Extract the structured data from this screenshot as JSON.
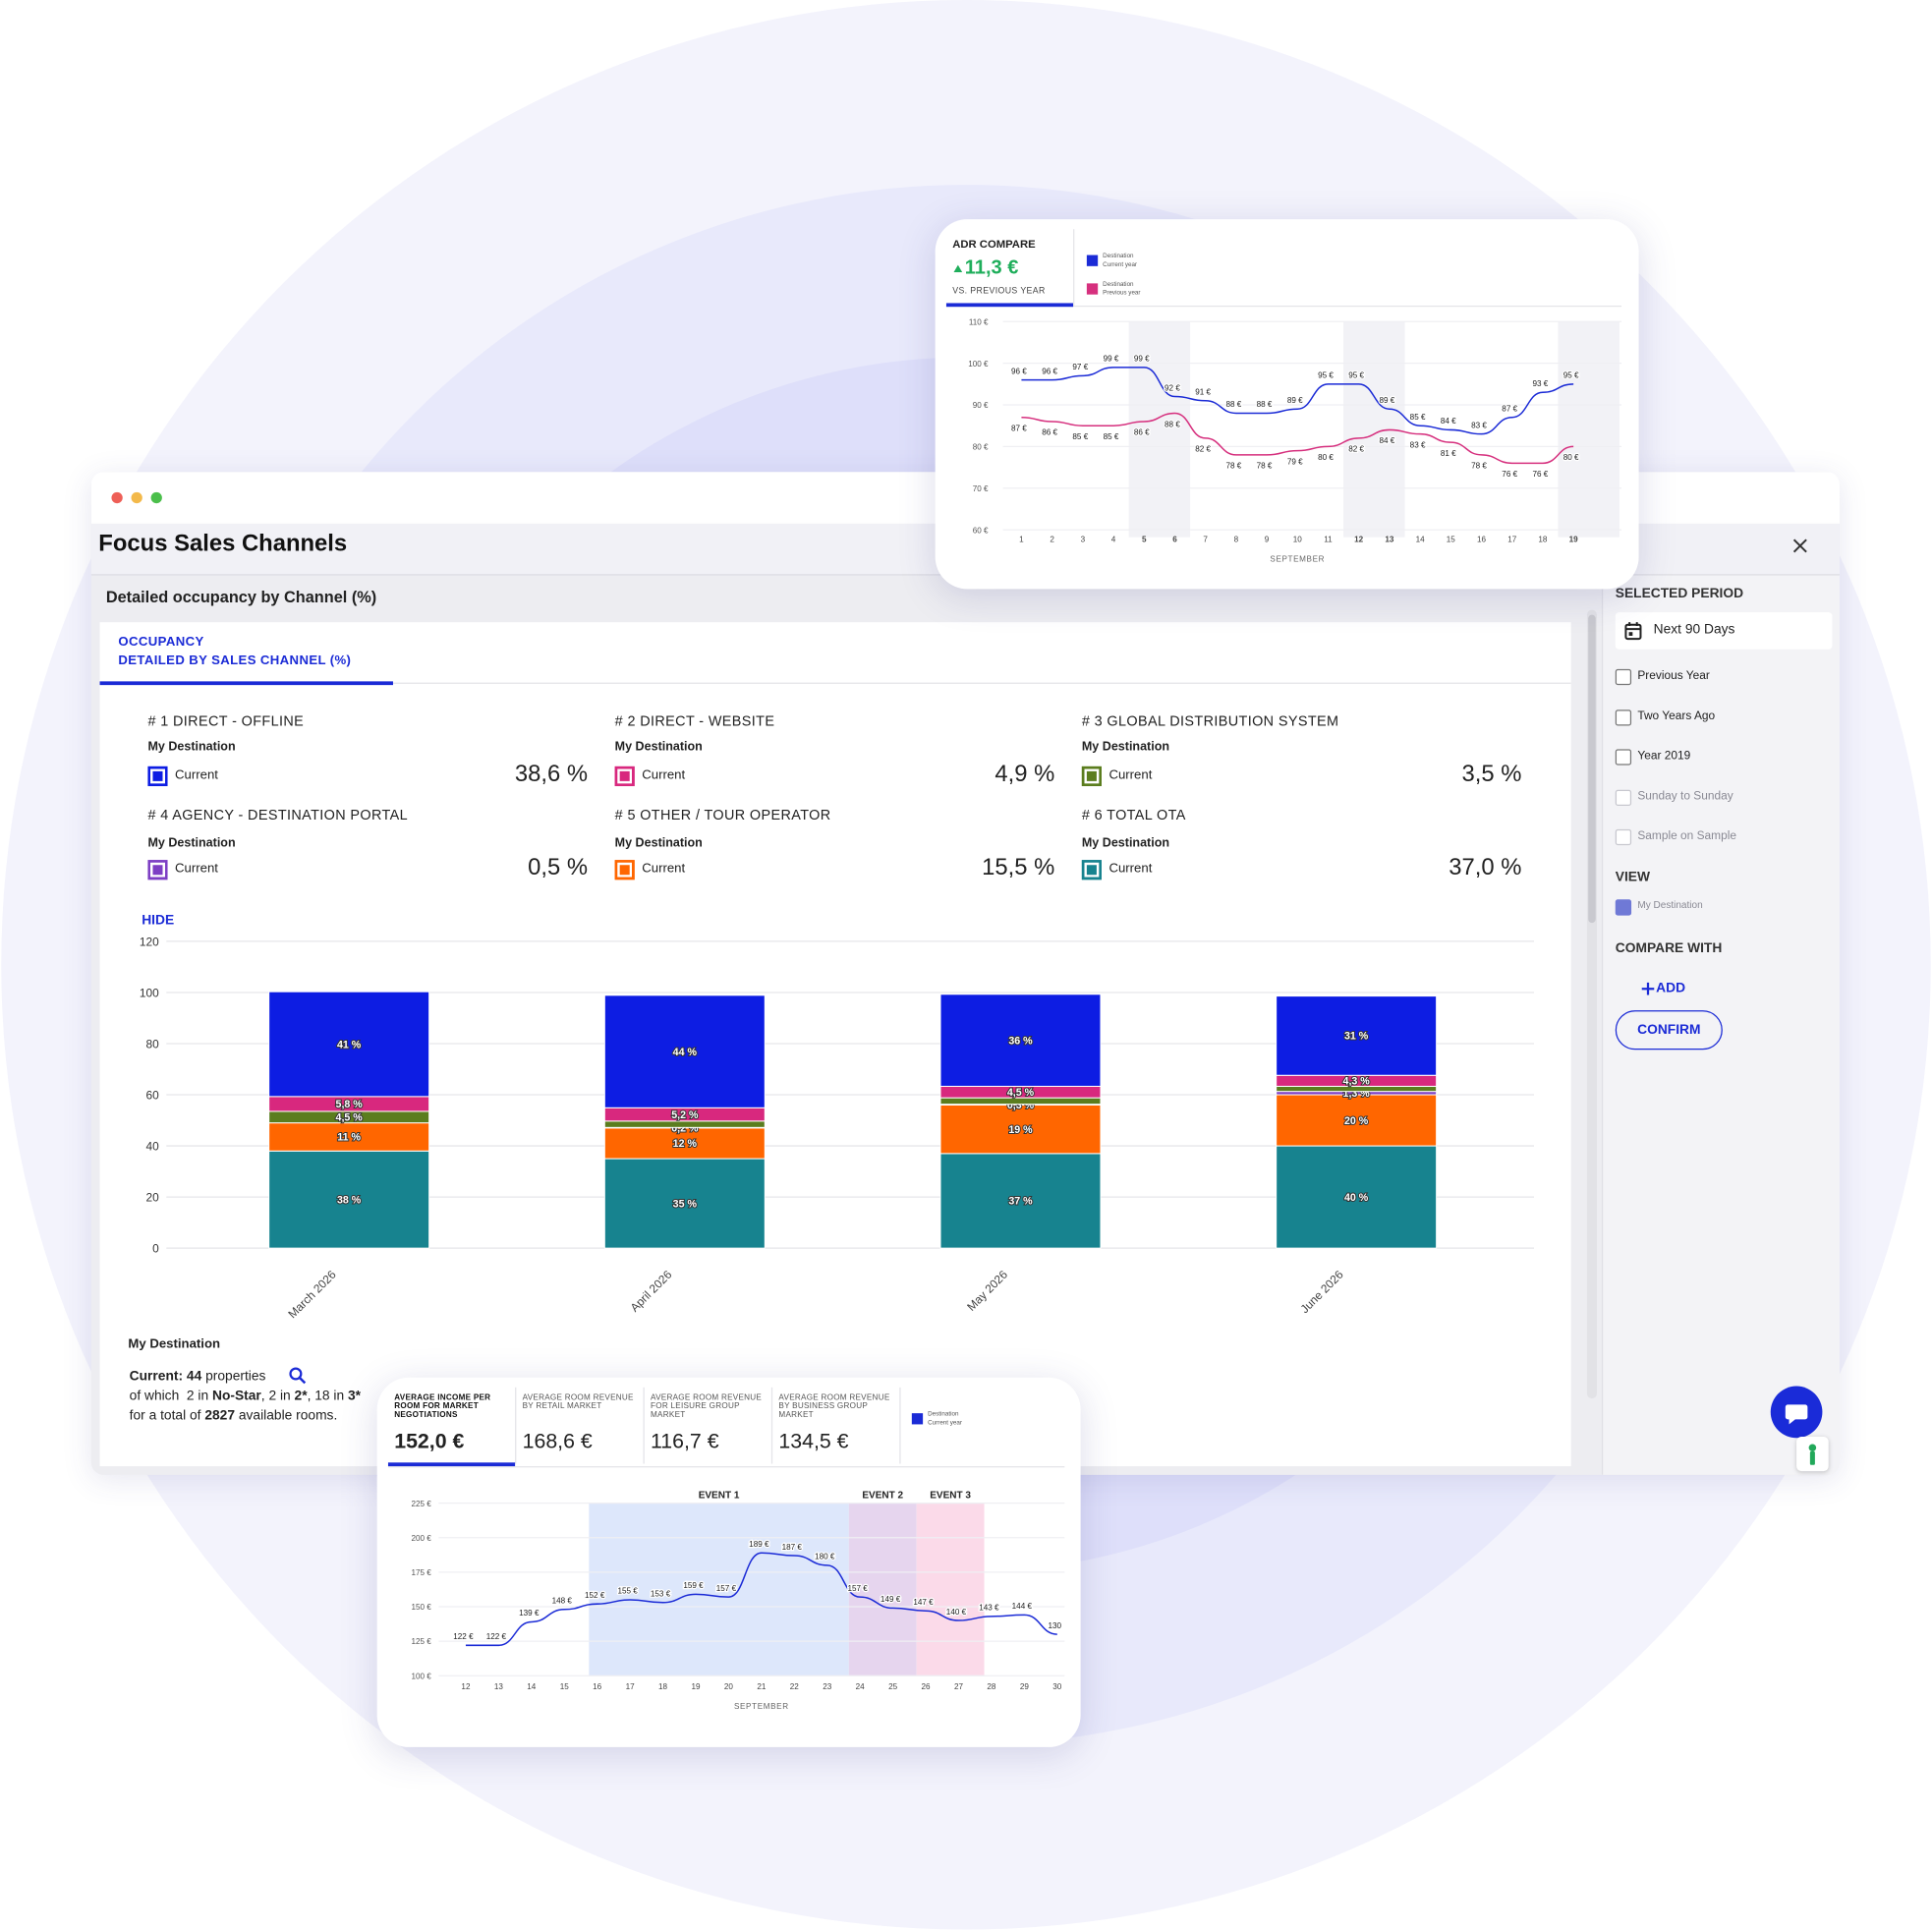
{
  "window": {
    "title": "Focus Sales Channels",
    "section": "Detailed occupancy by Channel (%)",
    "tab": [
      "OCCUPANCY",
      "DETAILED BY SALES CHANNEL (%)"
    ],
    "hide": "HIDE",
    "channels": [
      {
        "title": "# 1 DIRECT - OFFLINE",
        "group": "My Destination",
        "label": "Current",
        "value": "38,6 %",
        "color": "#0d1de3"
      },
      {
        "title": "# 2 DIRECT - WEBSITE",
        "group": "My Destination",
        "label": "Current",
        "value": "4,9 %",
        "color": "#d8287e"
      },
      {
        "title": "# 3 GLOBAL DISTRIBUTION SYSTEM",
        "group": "My Destination",
        "label": "Current",
        "value": "3,5 %",
        "color": "#5b7d1e"
      },
      {
        "title": "# 4 AGENCY - DESTINATION PORTAL",
        "group": "My Destination",
        "label": "Current",
        "value": "0,5 %",
        "color": "#7d3fc4"
      },
      {
        "title": "# 5 OTHER / TOUR OPERATOR",
        "group": "My Destination",
        "label": "Current",
        "value": "15,5 %",
        "color": "#ff6600"
      },
      {
        "title": "# 6 TOTAL OTA",
        "group": "My Destination",
        "label": "Current",
        "value": "37,0 %",
        "color": "#17838f"
      }
    ],
    "footer": {
      "heading": "My Destination",
      "lines": [
        [
          {
            "text": "Current: ",
            "bold": true
          },
          {
            "text": "44",
            "bold": true
          },
          {
            "text": " properties"
          }
        ],
        [
          {
            "text": "of which  2 in "
          },
          {
            "text": "No-Star",
            "bold": true
          },
          {
            "text": ", 2 in "
          },
          {
            "text": "2*",
            "bold": true
          },
          {
            "text": ", 18 in "
          },
          {
            "text": "3*",
            "bold": true
          }
        ],
        [
          {
            "text": "for a total of "
          },
          {
            "text": "2827",
            "bold": true
          },
          {
            "text": " available rooms."
          }
        ]
      ]
    }
  },
  "sidebar": {
    "period_title": "SELECTED PERIOD",
    "period": "Next 90 Days",
    "options": [
      {
        "label": "Previous Year"
      },
      {
        "label": "Two Years Ago"
      },
      {
        "label": "Year 2019"
      },
      {
        "label": "Sunday to Sunday",
        "disabled": true
      },
      {
        "label": "Sample on Sample",
        "disabled": true
      }
    ],
    "view_title": "VIEW",
    "view_option": {
      "label": "My Destination",
      "checked": true
    },
    "compare_title": "COMPARE WITH",
    "add": "ADD",
    "confirm": "CONFIRM"
  },
  "chart_data": [
    {
      "type": "bar",
      "stacked": true,
      "categories": [
        "March 2026",
        "April 2026",
        "May 2026",
        "June 2026"
      ],
      "ylim": [
        0,
        120
      ],
      "yticks": [
        0,
        20,
        40,
        60,
        80,
        100,
        120
      ],
      "grid": true,
      "series": [
        {
          "color": "#17838f",
          "values": [
            38,
            35,
            37,
            40
          ],
          "value_labels": [
            "38 %",
            "35 %",
            "37 %",
            "40 %"
          ]
        },
        {
          "color": "#ff6600",
          "values": [
            11,
            12,
            19,
            20
          ],
          "value_labels": [
            "11 %",
            "12 %",
            "19 %",
            "20 %"
          ]
        },
        {
          "color": "#7d3fc4",
          "values": [
            null,
            0.2,
            0.3,
            1.3
          ],
          "value_labels": [
            null,
            "0,2 %",
            "0,3 %",
            "1,3 %"
          ]
        },
        {
          "color": "#5b7d1e",
          "values": [
            4.5,
            2.5,
            2.5,
            2
          ],
          "value_labels": [
            "4,5 %",
            null,
            null,
            null
          ]
        },
        {
          "color": "#d8287e",
          "values": [
            5.8,
            5.2,
            4.5,
            4.3
          ],
          "value_labels": [
            "5,8 %",
            "5,2 %",
            "4,5 %",
            "4,3 %"
          ]
        },
        {
          "color": "#0d1de3",
          "values": [
            41,
            44,
            36,
            31
          ],
          "value_labels": [
            "41 %",
            "44 %",
            "36 %",
            "31 %"
          ]
        }
      ]
    },
    {
      "type": "line",
      "title": "ADR COMPARE",
      "kpi": "11,3 €",
      "kpi_caption": "VS. PREVIOUS YEAR",
      "x_label": "SEPTEMBER",
      "categories": [
        "1",
        "2",
        "3",
        "4",
        "5",
        "6",
        "7",
        "8",
        "9",
        "10",
        "11",
        "12",
        "13",
        "14",
        "15",
        "16",
        "17",
        "18",
        "19"
      ],
      "ylim": [
        60,
        110
      ],
      "yticks": [
        {
          "value": 60,
          "label": "60 €"
        },
        {
          "value": 70,
          "label": "70 €"
        },
        {
          "value": 80,
          "label": "80 €"
        },
        {
          "value": 90,
          "label": "90 €"
        },
        {
          "value": 100,
          "label": "100 €"
        },
        {
          "value": 110,
          "label": "110 €"
        }
      ],
      "series": [
        {
          "name": "Destination Current year",
          "color": "#1b2bd6",
          "values": [
            96,
            96,
            97,
            99,
            99,
            92,
            91,
            88,
            88,
            89,
            95,
            95,
            89,
            85,
            84,
            83,
            87,
            93,
            95
          ],
          "value_labels": [
            "96 €",
            "96 €",
            "97 €",
            "99 €",
            "99 €",
            "92 €",
            "91 €",
            "88 €",
            "88 €",
            "89 €",
            "95 €",
            "95 €",
            "89 €",
            "85 €",
            "84 €",
            "83 €",
            "87 €",
            "93 €",
            "95 €"
          ]
        },
        {
          "name": "Destination Previous year",
          "color": "#d6307e",
          "values": [
            87,
            86,
            85,
            85,
            86,
            88,
            82,
            78,
            78,
            79,
            80,
            82,
            84,
            83,
            81,
            78,
            76,
            76,
            80
          ],
          "value_labels": [
            "87 €",
            "86 €",
            "85 €",
            "85 €",
            "86 €",
            "88 €",
            "82 €",
            "78 €",
            "78 €",
            "79 €",
            "80 €",
            "82 €",
            "84 €",
            "83 €",
            "81 €",
            "78 €",
            "76 €",
            "76 €",
            "80 €"
          ]
        }
      ]
    },
    {
      "type": "line",
      "x_label": "SEPTEMBER",
      "tabs": [
        {
          "title": "AVERAGE INCOME PER ROOM FOR MARKET NEGOTIATIONS",
          "value": "152,0 €"
        },
        {
          "title": "AVERAGE ROOM REVENUE BY RETAIL MARKET",
          "value": "168,6 €"
        },
        {
          "title": "AVERAGE ROOM REVENUE FOR LEISURE GROUP MARKET",
          "value": "116,7 €"
        },
        {
          "title": "AVERAGE ROOM REVENUE BY BUSINESS GROUP MARKET",
          "value": "134,5 €"
        }
      ],
      "events": [
        {
          "label": "EVENT 1",
          "color": "#dde7fb"
        },
        {
          "label": "EVENT 2",
          "color": "#e6d5ee"
        },
        {
          "label": "EVENT 3",
          "color": "#fbdae9"
        }
      ],
      "categories": [
        "12",
        "13",
        "14",
        "15",
        "16",
        "17",
        "18",
        "19",
        "20",
        "21",
        "22",
        "23",
        "24",
        "25",
        "26",
        "27",
        "28",
        "29",
        "30"
      ],
      "ylim": [
        100,
        225
      ],
      "yticks": [
        {
          "value": 100,
          "label": "100 €"
        },
        {
          "value": 125,
          "label": "125 €"
        },
        {
          "value": 150,
          "label": "150 €"
        },
        {
          "value": 175,
          "label": "175 €"
        },
        {
          "value": 200,
          "label": "200 €"
        },
        {
          "value": 225,
          "label": "225 €"
        }
      ],
      "series": [
        {
          "name": "Destination Current year",
          "color": "#1b2bd6",
          "values": [
            122,
            122,
            139,
            148,
            152,
            155,
            153,
            159,
            157,
            189,
            187,
            180,
            157,
            149,
            147,
            140,
            143,
            144,
            130
          ],
          "value_labels": [
            "122 €",
            "122 €",
            "139 €",
            "148 €",
            "152 €",
            "155 €",
            "153 €",
            "159 €",
            "157 €",
            "189 €",
            "187 €",
            "180 €",
            "157 €",
            "149 €",
            "147 €",
            "140 €",
            "143 €",
            "144 €",
            "130"
          ]
        }
      ]
    }
  ]
}
